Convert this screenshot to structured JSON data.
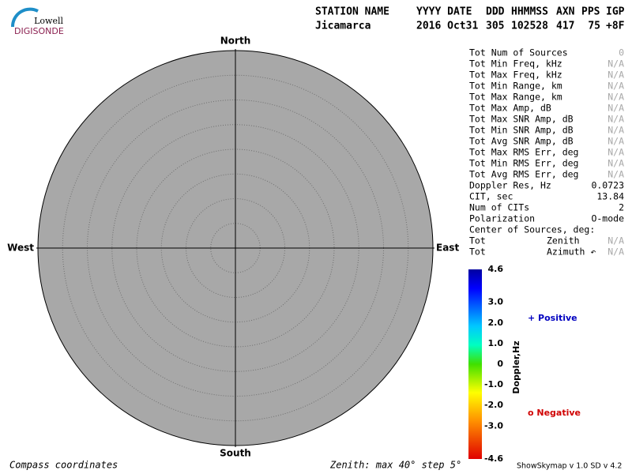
{
  "logo": {
    "top": "Lowell",
    "bottom": "DIGISONDE"
  },
  "header": {
    "labels": [
      "STATION NAME",
      "YYYY DATE",
      "DDD",
      "HHMMSS",
      "AXN",
      "PPS",
      "IGP"
    ],
    "values": [
      "Jicamarca",
      "2016 Oct31",
      "305",
      "102528",
      "417",
      "75",
      "+8F"
    ]
  },
  "compass": {
    "north": "North",
    "south": "South",
    "east": "East",
    "west": "West"
  },
  "stats": [
    {
      "label": "Tot Num of Sources",
      "value": "0"
    },
    {
      "label": "Tot Min Freq, kHz",
      "value": "N/A"
    },
    {
      "label": "Tot Max Freq, kHz",
      "value": "N/A"
    },
    {
      "label": "Tot Min Range, km",
      "value": "N/A"
    },
    {
      "label": "Tot Max Range, km",
      "value": "N/A"
    },
    {
      "label": "Tot Max Amp, dB",
      "value": "N/A"
    },
    {
      "label": "Tot Max SNR Amp, dB",
      "value": "N/A"
    },
    {
      "label": "Tot Min SNR Amp, dB",
      "value": "N/A"
    },
    {
      "label": "Tot Avg SNR Amp, dB",
      "value": "N/A"
    },
    {
      "label": "Tot Max RMS Err, deg",
      "value": "N/A"
    },
    {
      "label": "Tot Min RMS Err, deg",
      "value": "N/A"
    },
    {
      "label": "Tot Avg RMS Err, deg",
      "value": "N/A"
    },
    {
      "label": "Doppler Res, Hz",
      "value": "0.0723"
    },
    {
      "label": "CIT, sec",
      "value": "13.84"
    },
    {
      "label": "Num of CITs",
      "value": "2"
    },
    {
      "label": "Polarization",
      "value": "O-mode"
    },
    {
      "label": "Center of Sources, deg:"
    },
    {
      "label": "Tot",
      "middle": "Zenith",
      "value": "N/A"
    },
    {
      "label": "Tot",
      "middle": "Azimuth ↶",
      "value": "N/A"
    }
  ],
  "colorbar": {
    "title": "Doppler,Hz",
    "ticks": [
      "4.6",
      "3.0",
      "2.0",
      "1.0",
      "0",
      "-1.0",
      "-2.0",
      "-3.0",
      "-4.6"
    ]
  },
  "legend": {
    "positive": "+ Positive",
    "negative": "o Negative"
  },
  "footer": {
    "left": "Compass coordinates",
    "middle": "Zenith: max 40°  step 5°",
    "right": "ShowSkymap v 1.0  SD v 4.2"
  }
}
